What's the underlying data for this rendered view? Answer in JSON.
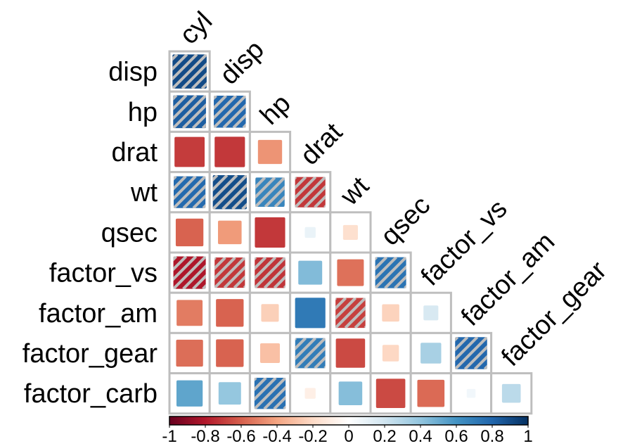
{
  "chart_data": {
    "type": "heatmap",
    "style": "lower-triangular correlation plot (corrplot), filled squares sized by magnitude, hatched where significant",
    "column_labels": [
      "cyl",
      "disp",
      "hp",
      "drat",
      "wt",
      "qsec",
      "factor_vs",
      "factor_am",
      "factor_gear"
    ],
    "row_labels": [
      "disp",
      "hp",
      "drat",
      "wt",
      "qsec",
      "factor_vs",
      "factor_am",
      "factor_gear",
      "factor_carb"
    ],
    "rows": [
      {
        "label": "disp",
        "values": [
          0.9
        ],
        "hatched": [
          true
        ]
      },
      {
        "label": "hp",
        "values": [
          0.83,
          0.79
        ],
        "hatched": [
          true,
          true
        ]
      },
      {
        "label": "drat",
        "values": [
          -0.7,
          -0.71,
          -0.45
        ],
        "hatched": [
          false,
          false,
          false
        ]
      },
      {
        "label": "wt",
        "values": [
          0.78,
          0.89,
          0.66,
          -0.71
        ],
        "hatched": [
          true,
          true,
          true,
          true
        ]
      },
      {
        "label": "qsec",
        "values": [
          -0.59,
          -0.43,
          -0.71,
          0.09,
          -0.17
        ],
        "hatched": [
          false,
          false,
          false,
          false,
          false
        ]
      },
      {
        "label": "factor_vs",
        "values": [
          -0.81,
          -0.71,
          -0.72,
          0.44,
          -0.55,
          0.74
        ],
        "hatched": [
          true,
          true,
          true,
          false,
          false,
          true
        ]
      },
      {
        "label": "factor_am",
        "values": [
          -0.52,
          -0.59,
          -0.24,
          0.71,
          -0.69,
          -0.23,
          0.17
        ],
        "hatched": [
          false,
          false,
          false,
          false,
          true,
          false,
          false
        ]
      },
      {
        "label": "factor_gear",
        "values": [
          -0.56,
          -0.59,
          -0.3,
          0.7,
          -0.66,
          -0.21,
          0.33,
          0.79
        ],
        "hatched": [
          false,
          false,
          false,
          true,
          false,
          false,
          false,
          true
        ]
      },
      {
        "label": "factor_carb",
        "values": [
          0.53,
          0.39,
          0.75,
          -0.09,
          0.43,
          -0.66,
          -0.57,
          0.06,
          0.27
        ],
        "hatched": [
          false,
          false,
          true,
          false,
          false,
          false,
          false,
          false,
          false
        ]
      }
    ],
    "colorbar": {
      "ticks": [
        "-1",
        "-0.8",
        "-0.6",
        "-0.4",
        "-0.2",
        "0",
        "0.2",
        "0.4",
        "0.6",
        "0.8",
        "1"
      ],
      "range": [
        -1,
        1
      ],
      "colors": [
        "#67001F",
        "#B2182B",
        "#D6604D",
        "#F4A582",
        "#FDDBC7",
        "#FFFFFF",
        "#D1E5F0",
        "#92C5DE",
        "#4393C3",
        "#2166AC",
        "#053061"
      ]
    },
    "grid_color": "#bebebe",
    "hatch_color": "#bebebe"
  }
}
